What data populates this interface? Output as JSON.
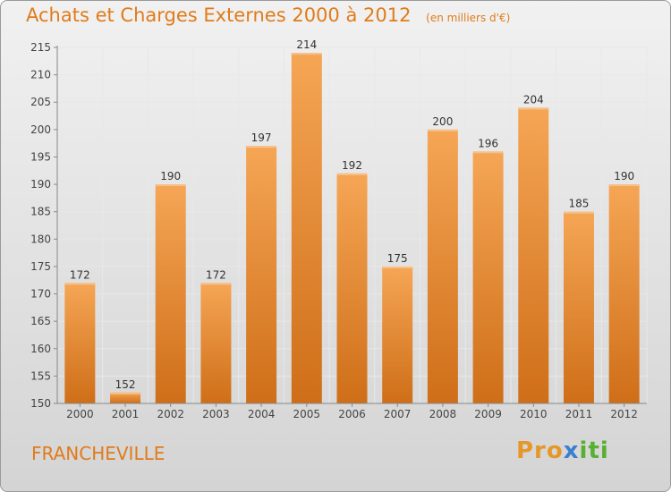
{
  "chart_data": {
    "type": "bar",
    "title": "Achats et Charges Externes 2000 à 2012",
    "subtitle": "(en milliers d'€)",
    "categories": [
      "2000",
      "2001",
      "2002",
      "2003",
      "2004",
      "2005",
      "2006",
      "2007",
      "2008",
      "2009",
      "2010",
      "2011",
      "2012"
    ],
    "values": [
      172,
      152,
      190,
      172,
      197,
      214,
      192,
      175,
      200,
      196,
      204,
      185,
      190
    ],
    "ylim": [
      150,
      215
    ],
    "yticks": [
      150,
      155,
      160,
      165,
      170,
      175,
      180,
      185,
      190,
      195,
      200,
      205,
      210,
      215
    ],
    "grid": true,
    "bar_color": "#f0a050",
    "bar_dark": "#cc6f1a"
  },
  "footer": {
    "city": "FRANCHEVILLE",
    "logo_part1": "Pro",
    "logo_part2": "x",
    "logo_part3": "iti"
  }
}
